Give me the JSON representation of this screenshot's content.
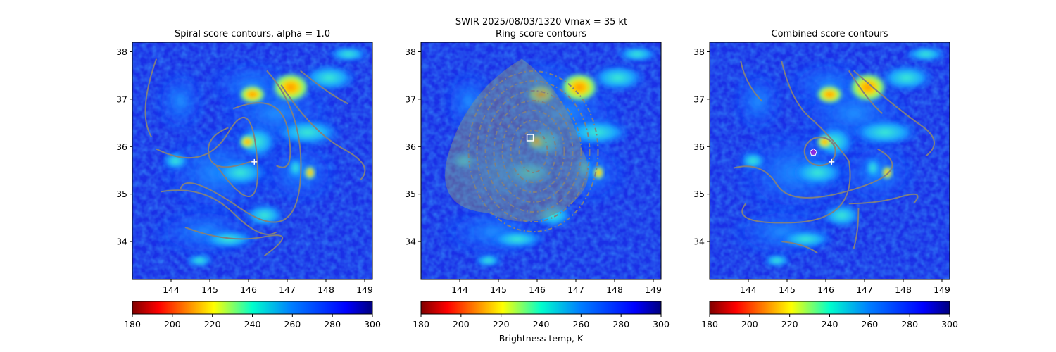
{
  "suptitle": {
    "line1": "SWIR  2025/08/03/1320    Vmax = 35 kt"
  },
  "colors": {
    "contour": "#808080",
    "marker": "#ffffff",
    "combined_center": "#8a2be2"
  },
  "chart_data": [
    {
      "type": "heatmap",
      "title": "Spiral score contours, alpha =  1.0",
      "xlim": [
        143.0,
        149.2
      ],
      "ylim": [
        33.2,
        38.2
      ],
      "xticks": [
        144,
        145,
        146,
        147,
        148,
        149
      ],
      "yticks": [
        34,
        35,
        36,
        37,
        38
      ],
      "colormap": "jet_r",
      "overlay": "spiral contours",
      "markers": [
        {
          "shape": "plus",
          "x": 146.15,
          "y": 35.68
        }
      ],
      "colorbar": {
        "range": [
          180,
          300
        ],
        "ticks": [
          180,
          200,
          220,
          240,
          260,
          280,
          300
        ],
        "label": ""
      }
    },
    {
      "type": "heatmap",
      "title": "Ring score contours",
      "xlim": [
        143.0,
        149.2
      ],
      "ylim": [
        33.2,
        38.2
      ],
      "xticks": [
        144,
        145,
        146,
        147,
        148,
        149
      ],
      "yticks": [
        34,
        35,
        36,
        37,
        38
      ],
      "colormap": "jet_r",
      "overlay": "ring contours",
      "markers": [
        {
          "shape": "square",
          "x": 145.82,
          "y": 36.19
        }
      ],
      "colorbar": {
        "range": [
          180,
          300
        ],
        "ticks": [
          180,
          200,
          220,
          240,
          260,
          280,
          300
        ],
        "label": "Brightness temp, K"
      }
    },
    {
      "type": "heatmap",
      "title": "Combined score contours",
      "xlim": [
        143.0,
        149.2
      ],
      "ylim": [
        33.2,
        38.2
      ],
      "xticks": [
        144,
        145,
        146,
        147,
        148,
        149
      ],
      "yticks": [
        34,
        35,
        36,
        37,
        38
      ],
      "colormap": "jet_r",
      "overlay": "combined contours",
      "markers": [
        {
          "shape": "plus",
          "x": 146.15,
          "y": 35.68
        },
        {
          "shape": "pentagon",
          "x": 145.68,
          "y": 35.88
        }
      ],
      "colorbar": {
        "range": [
          180,
          300
        ],
        "ticks": [
          180,
          200,
          220,
          240,
          260,
          280,
          300
        ],
        "label": ""
      }
    }
  ]
}
